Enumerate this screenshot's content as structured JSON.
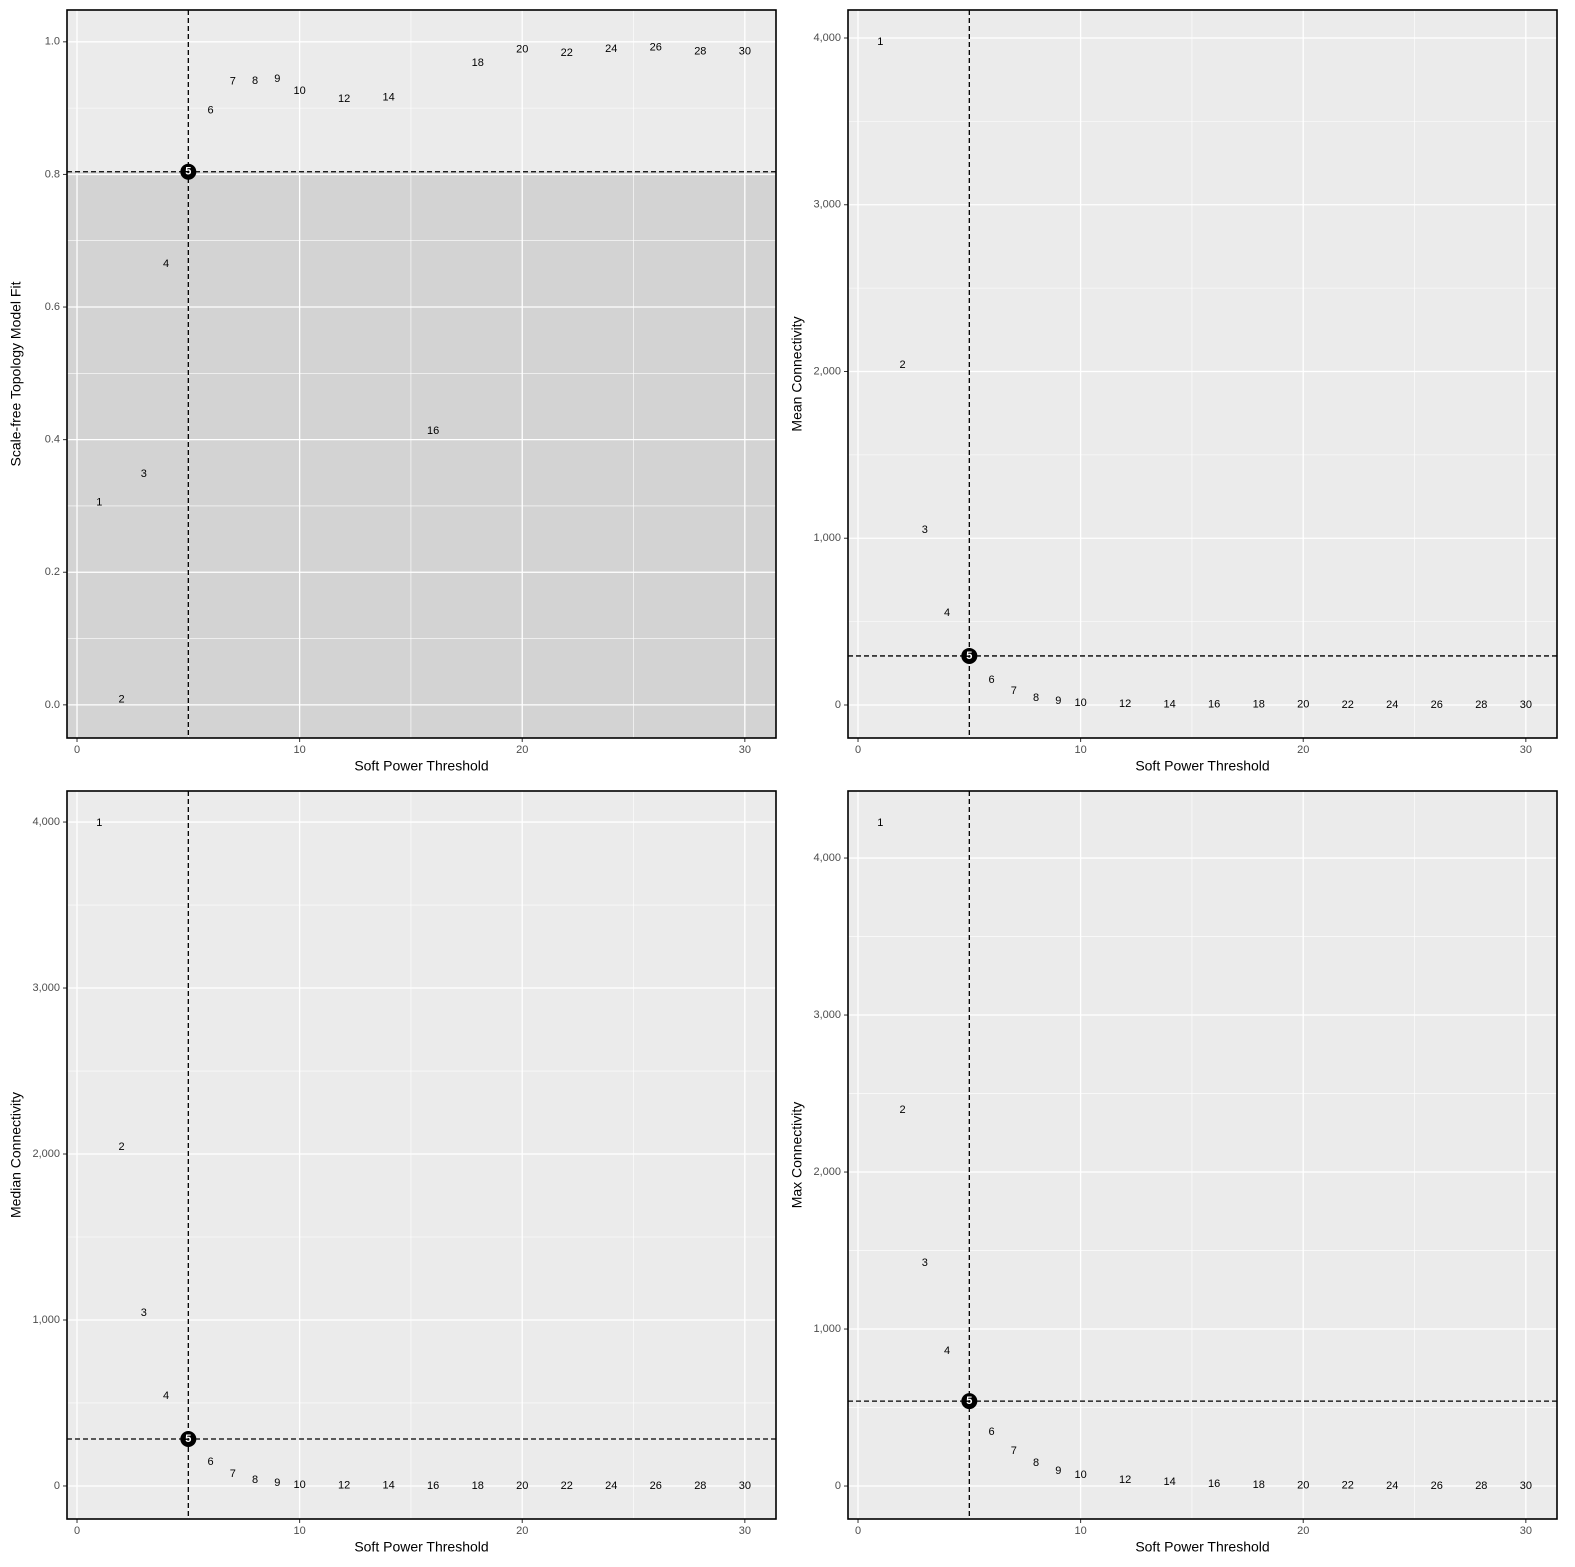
{
  "chart_data": [
    {
      "type": "scatter",
      "xlabel": "Soft Power Threshold",
      "ylabel": "Scale-free Topology Model Fit",
      "x": [
        1,
        2,
        3,
        4,
        5,
        6,
        7,
        8,
        9,
        10,
        12,
        14,
        16,
        18,
        20,
        22,
        24,
        26,
        28,
        30
      ],
      "values": [
        0.305,
        0.008,
        0.348,
        0.665,
        0.804,
        0.896,
        0.94,
        0.941,
        0.944,
        0.926,
        0.914,
        0.916,
        0.413,
        0.968,
        0.988,
        0.983,
        0.989,
        0.991,
        0.985,
        0.985
      ],
      "xlim": [
        -0.45,
        31.4
      ],
      "ylim": [
        -0.05,
        1.048
      ],
      "xticks": [
        0,
        10,
        20,
        30
      ],
      "yticks": [
        {
          "value": 0,
          "label": "0.0"
        },
        0.2,
        0.4,
        0.6,
        0.8,
        {
          "value": 1,
          "label": "1.0"
        }
      ],
      "highlight": 5,
      "shaded": true,
      "grid": true
    },
    {
      "type": "scatter",
      "xlabel": "Soft Power Threshold",
      "ylabel": "Mean Connectivity",
      "x": [
        1,
        2,
        3,
        4,
        5,
        6,
        7,
        8,
        9,
        10,
        12,
        14,
        16,
        18,
        20,
        22,
        24,
        26,
        28,
        30
      ],
      "values": [
        3976,
        2039,
        1049,
        552,
        294,
        150,
        84,
        42,
        24,
        12,
        5,
        3,
        2,
        1,
        1,
        0,
        0,
        0,
        0,
        0
      ],
      "xlim": [
        -0.45,
        31.4
      ],
      "ylim": [
        -198,
        4168
      ],
      "xticks": [
        0,
        10,
        20,
        30
      ],
      "yticks": [
        0,
        {
          "value": 1000,
          "label": "1,000"
        },
        {
          "value": 2000,
          "label": "2,000"
        },
        {
          "value": 3000,
          "label": "3,000"
        },
        {
          "value": 4000,
          "label": "4,000"
        }
      ],
      "highlight": 5,
      "shaded": false,
      "grid": true
    },
    {
      "type": "scatter",
      "xlabel": "Soft Power Threshold",
      "ylabel": "Median Connectivity",
      "x": [
        1,
        2,
        3,
        4,
        5,
        6,
        7,
        8,
        9,
        10,
        12,
        14,
        16,
        18,
        20,
        22,
        24,
        26,
        28,
        30
      ],
      "values": [
        3994,
        2042,
        1042,
        542,
        283,
        145,
        72,
        36,
        18,
        6,
        2,
        1,
        0,
        0,
        0,
        0,
        0,
        0,
        0,
        0
      ],
      "xlim": [
        -0.45,
        31.4
      ],
      "ylim": [
        -199,
        4187
      ],
      "xticks": [
        0,
        10,
        20,
        30
      ],
      "yticks": [
        0,
        {
          "value": 1000,
          "label": "1,000"
        },
        {
          "value": 2000,
          "label": "2,000"
        },
        {
          "value": 3000,
          "label": "3,000"
        },
        {
          "value": 4000,
          "label": "4,000"
        }
      ],
      "highlight": 5,
      "shaded": false,
      "grid": true
    },
    {
      "type": "scatter",
      "xlabel": "Soft Power Threshold",
      "ylabel": "Max Connectivity",
      "x": [
        1,
        2,
        3,
        4,
        5,
        6,
        7,
        8,
        9,
        10,
        12,
        14,
        16,
        18,
        20,
        22,
        24,
        26,
        28,
        30
      ],
      "values": [
        4223,
        2395,
        1420,
        860,
        541,
        344,
        223,
        146,
        96,
        70,
        38,
        25,
        13,
        6,
        4,
        2,
        1,
        1,
        0,
        0
      ],
      "xlim": [
        -0.45,
        31.4
      ],
      "ylim": [
        -210,
        4427
      ],
      "xticks": [
        0,
        10,
        20,
        30
      ],
      "yticks": [
        0,
        {
          "value": 1000,
          "label": "1,000"
        },
        {
          "value": 2000,
          "label": "2,000"
        },
        {
          "value": 3000,
          "label": "3,000"
        },
        {
          "value": 4000,
          "label": "4,000"
        }
      ],
      "highlight": 5,
      "shaded": false,
      "grid": true
    }
  ]
}
